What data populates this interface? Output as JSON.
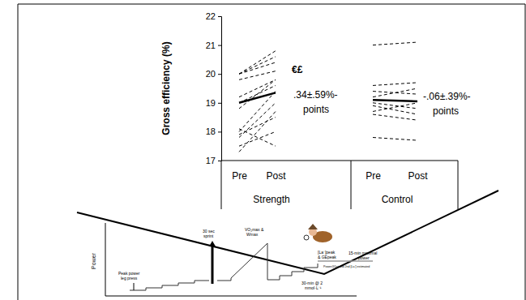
{
  "chart_data": {
    "type": "line",
    "y_label": "Gross efficiency (%)",
    "categories": [
      "Pre",
      "Post",
      "Pre",
      "Post"
    ],
    "group_labels": [
      "Strength",
      "Control"
    ],
    "ylim": [
      17,
      22
    ],
    "yticks": [
      17,
      18,
      19,
      20,
      21,
      22
    ],
    "grid": false,
    "series": [
      {
        "color": "#000000",
        "line_style": "dashed",
        "values": [
          20.0,
          20.8,
          null,
          null
        ]
      },
      {
        "color": "#000000",
        "line_style": "dashed",
        "values": [
          20.0,
          20.6,
          null,
          null
        ]
      },
      {
        "color": "#000000",
        "line_style": "dashed",
        "values": [
          20.0,
          20.4,
          null,
          null
        ]
      },
      {
        "color": "#000000",
        "line_style": "dashed",
        "values": [
          19.8,
          20.1,
          null,
          null
        ]
      },
      {
        "color": "#000000",
        "line_style": "dashed",
        "values": [
          19.2,
          19.8,
          null,
          null
        ]
      },
      {
        "color": "#000000",
        "line_style": "dashed",
        "values": [
          19.0,
          19.6,
          null,
          null
        ]
      },
      {
        "color": "#000000",
        "line_style": "dashed",
        "values": [
          18.8,
          19.8,
          null,
          null
        ]
      },
      {
        "color": "#000000",
        "line_style": "dashed",
        "values": [
          18.0,
          19.4,
          null,
          null
        ]
      },
      {
        "color": "#000000",
        "line_style": "dashed",
        "values": [
          17.9,
          18.5,
          null,
          null
        ]
      },
      {
        "color": "#000000",
        "line_style": "dashed",
        "values": [
          17.8,
          19.0,
          null,
          null
        ]
      },
      {
        "color": "#000000",
        "line_style": "dashed",
        "values": [
          17.3,
          18.7,
          null,
          null
        ]
      },
      {
        "color": "#000000",
        "line_style": "dashed",
        "values": [
          17.5,
          18.0,
          null,
          null
        ]
      },
      {
        "color": "#000000",
        "line_style": "dashed",
        "values": [
          18.1,
          17.5,
          null,
          null
        ]
      },
      {
        "color": "#000000",
        "line_style": "solid",
        "values": [
          19.0,
          19.35,
          null,
          null
        ]
      },
      {
        "color": "#000000",
        "line_style": "dashed",
        "values": [
          null,
          null,
          21.0,
          21.1
        ]
      },
      {
        "color": "#000000",
        "line_style": "dashed",
        "values": [
          null,
          null,
          19.6,
          19.7
        ]
      },
      {
        "color": "#000000",
        "line_style": "dashed",
        "values": [
          null,
          null,
          19.4,
          19.3
        ]
      },
      {
        "color": "#000000",
        "line_style": "dashed",
        "values": [
          null,
          null,
          19.2,
          19.5
        ]
      },
      {
        "color": "#000000",
        "line_style": "dashed",
        "values": [
          null,
          null,
          19.0,
          18.8
        ]
      },
      {
        "color": "#000000",
        "line_style": "dashed",
        "values": [
          null,
          null,
          18.9,
          18.6
        ]
      },
      {
        "color": "#000000",
        "line_style": "dashed",
        "values": [
          null,
          null,
          18.7,
          19.0
        ]
      },
      {
        "color": "#000000",
        "line_style": "dashed",
        "values": [
          null,
          null,
          18.6,
          18.4
        ]
      },
      {
        "color": "#000000",
        "line_style": "dashed",
        "values": [
          null,
          null,
          17.8,
          17.7
        ]
      },
      {
        "color": "#000000",
        "line_style": "solid",
        "values": [
          null,
          null,
          19.1,
          19.05
        ]
      }
    ],
    "annotations": [
      "€£",
      ".34±.59%-",
      "points",
      "-.06±.39%-",
      "points"
    ]
  },
  "diagram": {
    "y_label": "Power",
    "labels": [
      "Peak power",
      "leg press",
      "30 sec",
      "sprint",
      "VO₂max &",
      "Wmax",
      "[La⁻]peak",
      "& GEpeak",
      "Power@1st and 2nd [La⁻] estimated",
      "15-min maximal",
      "power",
      "30-min @ 2",
      "mmol·L⁻¹"
    ]
  }
}
